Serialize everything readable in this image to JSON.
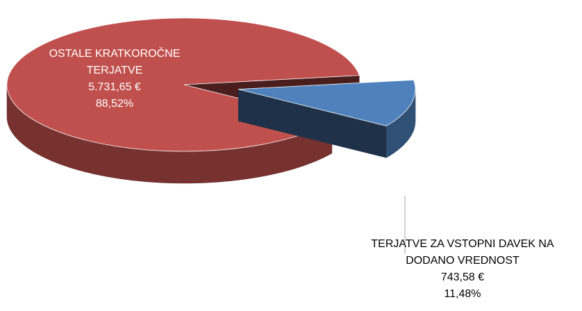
{
  "chart_data": {
    "type": "pie3d",
    "categories": [
      "OSTALE KRATKOROČNE TERJATVE",
      "TERJATVE ZA VSTOPNI DAVEK NA DODANO VREDNOST"
    ],
    "values": [
      5731.65,
      743.58
    ],
    "value_labels": [
      "5.731,65 €",
      "743,58 €"
    ],
    "percents": [
      88.52,
      11.48
    ],
    "percent_labels": [
      "88,52%",
      "11,48%"
    ],
    "colors": [
      "#c0504d",
      "#4f81bd"
    ],
    "exploded": [
      false,
      true
    ]
  }
}
